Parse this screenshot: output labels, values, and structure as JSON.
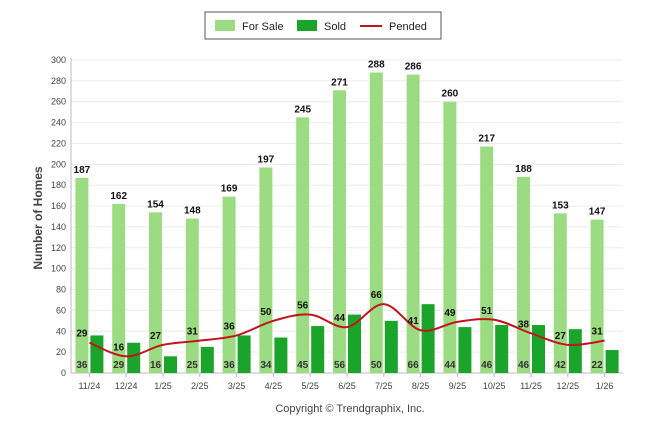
{
  "chart_data": {
    "type": "bar",
    "categories": [
      "11/24",
      "12/24",
      "1/25",
      "2/25",
      "3/25",
      "4/25",
      "5/25",
      "6/25",
      "7/25",
      "8/25",
      "9/25",
      "10/25",
      "11/25",
      "12/25",
      "1/26"
    ],
    "series": [
      {
        "name": "For Sale",
        "type": "bar",
        "color": "#9bdc82",
        "values": [
          187,
          162,
          154,
          148,
          169,
          197,
          245,
          271,
          288,
          286,
          260,
          217,
          188,
          153,
          147
        ]
      },
      {
        "name": "Sold",
        "type": "bar",
        "color": "#1aa52a",
        "values": [
          36,
          29,
          16,
          25,
          36,
          34,
          45,
          56,
          50,
          66,
          44,
          46,
          46,
          42,
          22
        ]
      },
      {
        "name": "Pended",
        "type": "line",
        "color": "#c0151b",
        "values": [
          29,
          16,
          27,
          31,
          36,
          50,
          56,
          44,
          66,
          41,
          49,
          51,
          38,
          27,
          31
        ]
      }
    ],
    "ylabel": "Number of Homes",
    "ylim": [
      0,
      300
    ],
    "yticks": [
      0,
      20,
      40,
      60,
      80,
      100,
      120,
      140,
      160,
      180,
      200,
      220,
      240,
      260,
      280,
      300
    ],
    "grid": true,
    "legend_position": "top-center",
    "footer": "Copyright © Trendgraphix, Inc."
  }
}
